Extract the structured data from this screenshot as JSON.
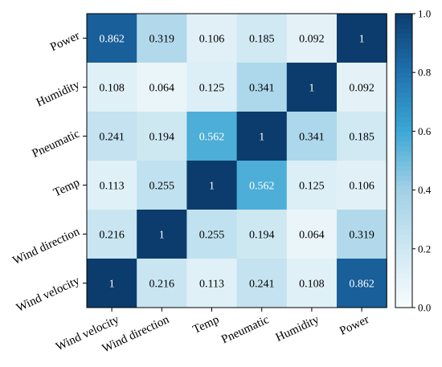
{
  "chart_data": {
    "type": "heatmap",
    "x_categories": [
      "Wind velocity",
      "Wind direction",
      "Temp",
      "Pneumatic",
      "Humidity",
      "Power"
    ],
    "y_categories_top_to_bottom": [
      "Power",
      "Humidity",
      "Pneumatic",
      "Temp",
      "Wind direction",
      "Wind velocity"
    ],
    "matrix": [
      [
        0.862,
        0.319,
        0.106,
        0.185,
        0.092,
        1
      ],
      [
        0.108,
        0.064,
        0.125,
        0.341,
        1,
        0.092
      ],
      [
        0.241,
        0.194,
        0.562,
        1,
        0.341,
        0.185
      ],
      [
        0.113,
        0.255,
        1,
        0.562,
        0.125,
        0.106
      ],
      [
        0.216,
        1,
        0.255,
        0.194,
        0.064,
        0.319
      ],
      [
        1,
        0.216,
        0.113,
        0.241,
        0.108,
        0.862
      ]
    ],
    "cell_labels": [
      [
        "0.862",
        "0.319",
        "0.106",
        "0.185",
        "0.092",
        "1"
      ],
      [
        "0.108",
        "0.064",
        "0.125",
        "0.341",
        "1",
        "0.092"
      ],
      [
        "0.241",
        "0.194",
        "0.562",
        "1",
        "0.341",
        "0.185"
      ],
      [
        "0.113",
        "0.255",
        "1",
        "0.562",
        "0.125",
        "0.106"
      ],
      [
        "0.216",
        "1",
        "0.255",
        "0.194",
        "0.064",
        "0.319"
      ],
      [
        "1",
        "0.216",
        "0.113",
        "0.241",
        "0.108",
        "0.862"
      ]
    ],
    "colorbar": {
      "range": [
        0.0,
        1.0
      ],
      "tick_values": [
        0.0,
        0.2,
        0.4,
        0.6,
        0.8,
        1.0
      ],
      "tick_labels": [
        "0.0",
        "0.2",
        "0.4",
        "0.6",
        "0.8",
        "1.0"
      ]
    },
    "colormap": [
      "#f7fbfd",
      "#cde7f2",
      "#9fd0e6",
      "#3aa6d4",
      "#1f6fad",
      "#0b3c6d"
    ],
    "title": "",
    "xlabel": "",
    "ylabel": "",
    "grid": false
  }
}
